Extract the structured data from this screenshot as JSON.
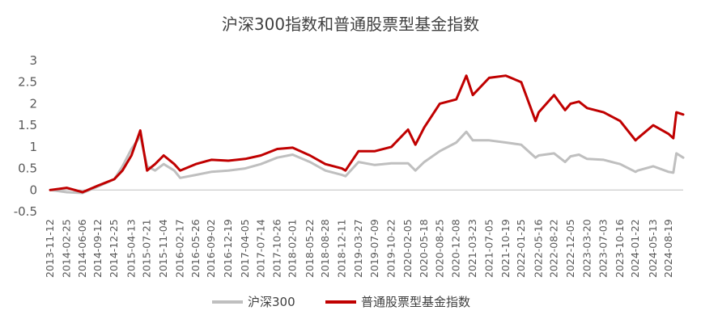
{
  "chart_data": {
    "type": "line",
    "title": "沪深300指数和普通股票型基金指数",
    "xlabel": "",
    "ylabel": "",
    "ylim": [
      -0.5,
      3
    ],
    "yticks": [
      "3",
      "2.5",
      "2",
      "1.5",
      "1",
      "0.5",
      "0",
      "-0.5"
    ],
    "grid": false,
    "legend_position": "bottom",
    "x_tick_labels": [
      "2013-11-12",
      "2014-02-25",
      "2014-06-06",
      "2014-09-12",
      "2014-12-25",
      "2015-04-13",
      "2015-07-21",
      "2015-11-04",
      "2016-02-17",
      "2016-05-26",
      "2016-09-02",
      "2016-12-19",
      "2017-04-05",
      "2017-07-14",
      "2017-10-26",
      "2018-02-01",
      "2018-05-22",
      "2018-08-28",
      "2018-12-11",
      "2019-03-27",
      "2019-07-09",
      "2019-10-22",
      "2020-02-05",
      "2020-05-18",
      "2020-08-25",
      "2020-12-08",
      "2021-03-23",
      "2021-07-05",
      "2021-10-19",
      "2022-01-25",
      "2022-05-16",
      "2022-08-22",
      "2022-12-05",
      "2023-03-20",
      "2023-07-03",
      "2023-10-16",
      "2024-01-22",
      "2024-05-13",
      "2024-08-19"
    ],
    "series": [
      {
        "name": "沪深300",
        "color": "#bfbfbf",
        "x": [
          "2013-11-12",
          "2014-02-25",
          "2014-06-06",
          "2014-09-12",
          "2014-12-25",
          "2015-02-15",
          "2015-04-13",
          "2015-06-08",
          "2015-07-21",
          "2015-09-10",
          "2015-11-04",
          "2016-01-10",
          "2016-02-17",
          "2016-05-26",
          "2016-09-02",
          "2016-12-19",
          "2017-04-05",
          "2017-07-14",
          "2017-10-26",
          "2018-02-01",
          "2018-05-22",
          "2018-08-28",
          "2018-12-11",
          "2019-01-03",
          "2019-03-27",
          "2019-07-09",
          "2019-10-22",
          "2020-02-05",
          "2020-03-23",
          "2020-05-18",
          "2020-08-25",
          "2020-12-08",
          "2021-02-10",
          "2021-03-23",
          "2021-07-05",
          "2021-10-19",
          "2022-01-25",
          "2022-04-26",
          "2022-05-16",
          "2022-08-22",
          "2022-10-31",
          "2022-12-05",
          "2023-01-27",
          "2023-03-20",
          "2023-07-03",
          "2023-10-16",
          "2024-01-22",
          "2024-02-05",
          "2024-05-13",
          "2024-08-19",
          "2024-09-18",
          "2024-10-08",
          "2024-11-20"
        ],
        "values": [
          0,
          -0.05,
          -0.07,
          0.08,
          0.25,
          0.55,
          0.95,
          1.25,
          0.55,
          0.45,
          0.6,
          0.45,
          0.28,
          0.35,
          0.42,
          0.45,
          0.5,
          0.6,
          0.75,
          0.82,
          0.65,
          0.45,
          0.35,
          0.32,
          0.65,
          0.58,
          0.62,
          0.62,
          0.45,
          0.65,
          0.9,
          1.1,
          1.35,
          1.15,
          1.15,
          1.1,
          1.05,
          0.75,
          0.8,
          0.85,
          0.65,
          0.78,
          0.82,
          0.72,
          0.7,
          0.6,
          0.42,
          0.45,
          0.55,
          0.42,
          0.4,
          0.85,
          0.75
        ]
      },
      {
        "name": "普通股票型基金指数",
        "color": "#c00000",
        "x": [
          "2013-11-12",
          "2014-02-25",
          "2014-06-06",
          "2014-09-12",
          "2014-12-25",
          "2015-02-15",
          "2015-04-13",
          "2015-06-08",
          "2015-07-21",
          "2015-09-10",
          "2015-11-04",
          "2016-01-10",
          "2016-02-17",
          "2016-05-26",
          "2016-09-02",
          "2016-12-19",
          "2017-04-05",
          "2017-07-14",
          "2017-10-26",
          "2018-02-01",
          "2018-05-22",
          "2018-08-28",
          "2018-12-11",
          "2019-01-03",
          "2019-03-27",
          "2019-07-09",
          "2019-10-22",
          "2020-02-05",
          "2020-03-23",
          "2020-05-18",
          "2020-08-25",
          "2020-12-08",
          "2021-02-10",
          "2021-03-23",
          "2021-07-05",
          "2021-10-19",
          "2022-01-25",
          "2022-04-26",
          "2022-05-16",
          "2022-08-22",
          "2022-10-31",
          "2022-12-05",
          "2023-01-27",
          "2023-03-20",
          "2023-07-03",
          "2023-10-16",
          "2024-01-22",
          "2024-02-05",
          "2024-05-13",
          "2024-08-19",
          "2024-09-18",
          "2024-10-08",
          "2024-11-20"
        ],
        "values": [
          0,
          0.05,
          -0.05,
          0.1,
          0.25,
          0.45,
          0.8,
          1.38,
          0.45,
          0.6,
          0.8,
          0.6,
          0.45,
          0.6,
          0.7,
          0.68,
          0.72,
          0.8,
          0.95,
          0.98,
          0.8,
          0.6,
          0.5,
          0.45,
          0.9,
          0.9,
          1.0,
          1.4,
          1.05,
          1.45,
          2.0,
          2.1,
          2.65,
          2.2,
          2.6,
          2.65,
          2.5,
          1.6,
          1.8,
          2.2,
          1.85,
          2.0,
          2.05,
          1.9,
          1.8,
          1.6,
          1.15,
          1.2,
          1.5,
          1.3,
          1.2,
          1.8,
          1.75
        ]
      }
    ]
  }
}
